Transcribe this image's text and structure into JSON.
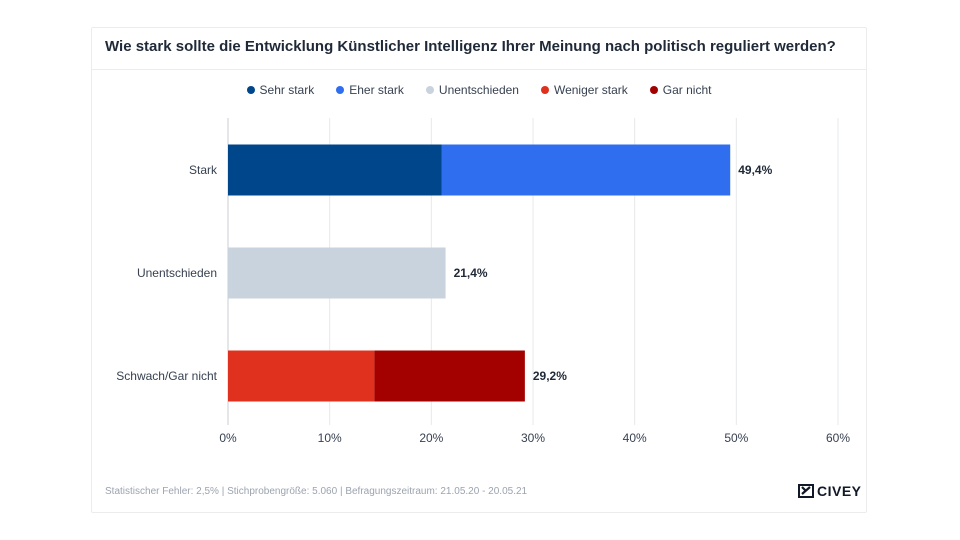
{
  "title": "Wie stark sollte die Entwicklung Künstlicher Intelligenz Ihrer Meinung nach politisch reguliert werden?",
  "footer": "Statistischer Fehler: 2,5% | Stichprobengröße: 5.060 | Befragungszeitraum: 21.05.20 - 20.05.21",
  "logo": {
    "text": "CIVEY",
    "icon": "civey-logo-icon"
  },
  "chart_data": {
    "type": "bar",
    "orientation": "horizontal",
    "stacked": true,
    "title": "Wie stark sollte die Entwicklung Künstlicher Intelligenz Ihrer Meinung nach politisch reguliert werden?",
    "categories": [
      "Stark",
      "Unentschieden",
      "Schwach/Gar nicht"
    ],
    "series": [
      {
        "name": "Sehr stark",
        "color": "#00468b",
        "values": [
          21.0,
          0,
          0
        ]
      },
      {
        "name": "Eher stark",
        "color": "#2f6eee",
        "values": [
          28.4,
          0,
          0
        ]
      },
      {
        "name": "Unentschieden",
        "color": "#c9d3dd",
        "values": [
          0,
          21.4,
          0
        ]
      },
      {
        "name": "Weniger stark",
        "color": "#e0301e",
        "values": [
          0,
          0,
          14.4
        ]
      },
      {
        "name": "Gar nicht",
        "color": "#a30000",
        "values": [
          0,
          0,
          14.8
        ]
      }
    ],
    "totals": [
      "49,4%",
      "21,4%",
      "29,2%"
    ],
    "x_ticks": [
      "0%",
      "10%",
      "20%",
      "30%",
      "40%",
      "50%",
      "60%"
    ],
    "xlim": [
      0,
      60
    ],
    "grid": true,
    "legend_position": "top-center"
  }
}
